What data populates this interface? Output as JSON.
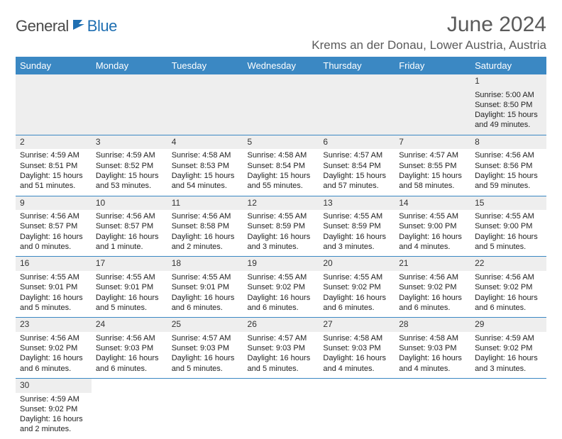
{
  "logo": {
    "general": "General",
    "blue": "Blue"
  },
  "title": "June 2024",
  "location": "Krems an der Donau, Lower Austria, Austria",
  "colors": {
    "header_bg": "#3b88c3",
    "header_text": "#ffffff",
    "row_divider": "#3b88c3",
    "daynum_bg": "#eeeeee",
    "text": "#222222",
    "logo_gray": "#4a4a4a",
    "logo_blue": "#1f6fb2"
  },
  "weekdays": [
    "Sunday",
    "Monday",
    "Tuesday",
    "Wednesday",
    "Thursday",
    "Friday",
    "Saturday"
  ],
  "weeks": [
    [
      null,
      null,
      null,
      null,
      null,
      null,
      {
        "d": "1",
        "sr": "Sunrise: 5:00 AM",
        "ss": "Sunset: 8:50 PM",
        "dl": "Daylight: 15 hours and 49 minutes."
      }
    ],
    [
      {
        "d": "2",
        "sr": "Sunrise: 4:59 AM",
        "ss": "Sunset: 8:51 PM",
        "dl": "Daylight: 15 hours and 51 minutes."
      },
      {
        "d": "3",
        "sr": "Sunrise: 4:59 AM",
        "ss": "Sunset: 8:52 PM",
        "dl": "Daylight: 15 hours and 53 minutes."
      },
      {
        "d": "4",
        "sr": "Sunrise: 4:58 AM",
        "ss": "Sunset: 8:53 PM",
        "dl": "Daylight: 15 hours and 54 minutes."
      },
      {
        "d": "5",
        "sr": "Sunrise: 4:58 AM",
        "ss": "Sunset: 8:54 PM",
        "dl": "Daylight: 15 hours and 55 minutes."
      },
      {
        "d": "6",
        "sr": "Sunrise: 4:57 AM",
        "ss": "Sunset: 8:54 PM",
        "dl": "Daylight: 15 hours and 57 minutes."
      },
      {
        "d": "7",
        "sr": "Sunrise: 4:57 AM",
        "ss": "Sunset: 8:55 PM",
        "dl": "Daylight: 15 hours and 58 minutes."
      },
      {
        "d": "8",
        "sr": "Sunrise: 4:56 AM",
        "ss": "Sunset: 8:56 PM",
        "dl": "Daylight: 15 hours and 59 minutes."
      }
    ],
    [
      {
        "d": "9",
        "sr": "Sunrise: 4:56 AM",
        "ss": "Sunset: 8:57 PM",
        "dl": "Daylight: 16 hours and 0 minutes."
      },
      {
        "d": "10",
        "sr": "Sunrise: 4:56 AM",
        "ss": "Sunset: 8:57 PM",
        "dl": "Daylight: 16 hours and 1 minute."
      },
      {
        "d": "11",
        "sr": "Sunrise: 4:56 AM",
        "ss": "Sunset: 8:58 PM",
        "dl": "Daylight: 16 hours and 2 minutes."
      },
      {
        "d": "12",
        "sr": "Sunrise: 4:55 AM",
        "ss": "Sunset: 8:59 PM",
        "dl": "Daylight: 16 hours and 3 minutes."
      },
      {
        "d": "13",
        "sr": "Sunrise: 4:55 AM",
        "ss": "Sunset: 8:59 PM",
        "dl": "Daylight: 16 hours and 3 minutes."
      },
      {
        "d": "14",
        "sr": "Sunrise: 4:55 AM",
        "ss": "Sunset: 9:00 PM",
        "dl": "Daylight: 16 hours and 4 minutes."
      },
      {
        "d": "15",
        "sr": "Sunrise: 4:55 AM",
        "ss": "Sunset: 9:00 PM",
        "dl": "Daylight: 16 hours and 5 minutes."
      }
    ],
    [
      {
        "d": "16",
        "sr": "Sunrise: 4:55 AM",
        "ss": "Sunset: 9:01 PM",
        "dl": "Daylight: 16 hours and 5 minutes."
      },
      {
        "d": "17",
        "sr": "Sunrise: 4:55 AM",
        "ss": "Sunset: 9:01 PM",
        "dl": "Daylight: 16 hours and 5 minutes."
      },
      {
        "d": "18",
        "sr": "Sunrise: 4:55 AM",
        "ss": "Sunset: 9:01 PM",
        "dl": "Daylight: 16 hours and 6 minutes."
      },
      {
        "d": "19",
        "sr": "Sunrise: 4:55 AM",
        "ss": "Sunset: 9:02 PM",
        "dl": "Daylight: 16 hours and 6 minutes."
      },
      {
        "d": "20",
        "sr": "Sunrise: 4:55 AM",
        "ss": "Sunset: 9:02 PM",
        "dl": "Daylight: 16 hours and 6 minutes."
      },
      {
        "d": "21",
        "sr": "Sunrise: 4:56 AM",
        "ss": "Sunset: 9:02 PM",
        "dl": "Daylight: 16 hours and 6 minutes."
      },
      {
        "d": "22",
        "sr": "Sunrise: 4:56 AM",
        "ss": "Sunset: 9:02 PM",
        "dl": "Daylight: 16 hours and 6 minutes."
      }
    ],
    [
      {
        "d": "23",
        "sr": "Sunrise: 4:56 AM",
        "ss": "Sunset: 9:02 PM",
        "dl": "Daylight: 16 hours and 6 minutes."
      },
      {
        "d": "24",
        "sr": "Sunrise: 4:56 AM",
        "ss": "Sunset: 9:03 PM",
        "dl": "Daylight: 16 hours and 6 minutes."
      },
      {
        "d": "25",
        "sr": "Sunrise: 4:57 AM",
        "ss": "Sunset: 9:03 PM",
        "dl": "Daylight: 16 hours and 5 minutes."
      },
      {
        "d": "26",
        "sr": "Sunrise: 4:57 AM",
        "ss": "Sunset: 9:03 PM",
        "dl": "Daylight: 16 hours and 5 minutes."
      },
      {
        "d": "27",
        "sr": "Sunrise: 4:58 AM",
        "ss": "Sunset: 9:03 PM",
        "dl": "Daylight: 16 hours and 4 minutes."
      },
      {
        "d": "28",
        "sr": "Sunrise: 4:58 AM",
        "ss": "Sunset: 9:03 PM",
        "dl": "Daylight: 16 hours and 4 minutes."
      },
      {
        "d": "29",
        "sr": "Sunrise: 4:59 AM",
        "ss": "Sunset: 9:02 PM",
        "dl": "Daylight: 16 hours and 3 minutes."
      }
    ],
    [
      {
        "d": "30",
        "sr": "Sunrise: 4:59 AM",
        "ss": "Sunset: 9:02 PM",
        "dl": "Daylight: 16 hours and 2 minutes."
      },
      null,
      null,
      null,
      null,
      null,
      null
    ]
  ]
}
